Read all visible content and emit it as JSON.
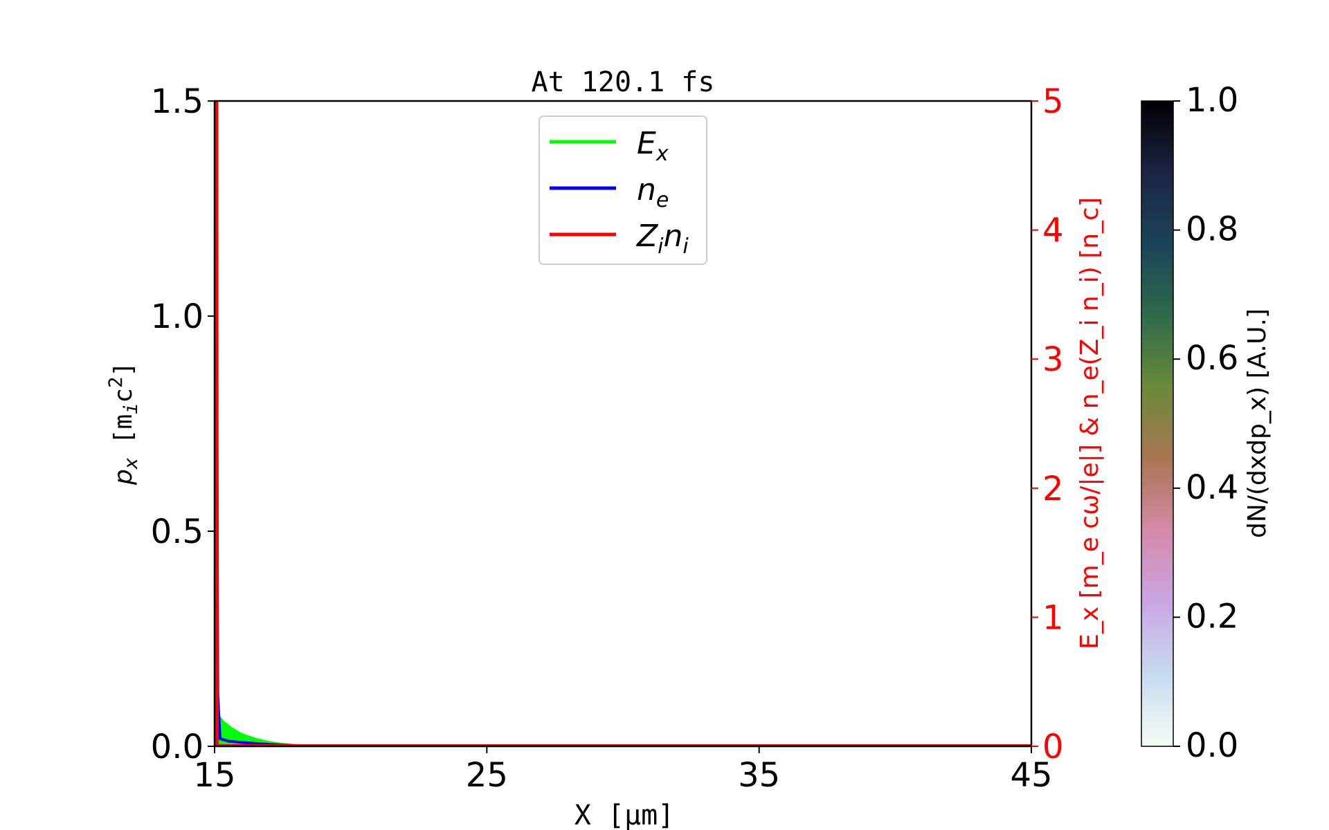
{
  "chart_data": {
    "type": "line",
    "title": "At 120.1 fs",
    "xlabel": "X [μm]",
    "ylabel_left": {
      "base": "p",
      "sub": "x",
      "unit_pre": "[m",
      "unit_sub": "i",
      "unit_mid": "c",
      "unit_sup": "2",
      "unit_post": "]"
    },
    "ylabel_right": "E_x [m_e cω/|e|] & n_e(Z_i n_i) [n_c]",
    "colorbar_label": "dN/(dxdp_x) [A.U.]",
    "xlim": [
      15,
      45
    ],
    "ylim_left": [
      0,
      1.5
    ],
    "ylim_right": [
      0,
      5
    ],
    "colorbar_lim": [
      0,
      1
    ],
    "xticks": [
      "15",
      "25",
      "35",
      "45"
    ],
    "yticks_left": [
      "0.0",
      "0.5",
      "1.0",
      "1.5"
    ],
    "yticks_right": [
      "0",
      "1",
      "2",
      "3",
      "4",
      "5"
    ],
    "colorbar_ticks": [
      "0.0",
      "0.2",
      "0.4",
      "0.6",
      "0.8",
      "1.0"
    ],
    "legend_position": "upper-center",
    "grid": false,
    "series": [
      {
        "name": "E_x",
        "color": "#00ff00",
        "axis": "right",
        "x": [
          15.08,
          15.12,
          15.3,
          15.6,
          16.0,
          16.5,
          17.0,
          17.5,
          18.0,
          19.0,
          45
        ],
        "y": [
          0.0,
          0.24,
          0.19,
          0.14,
          0.09,
          0.055,
          0.03,
          0.015,
          0.006,
          0.001,
          0.0
        ]
      },
      {
        "name": "n_e",
        "color": "#0000ff",
        "axis": "right",
        "x": [
          15.05,
          15.08,
          15.12,
          15.2,
          15.5,
          16.0,
          17.0,
          18.0,
          45
        ],
        "y": [
          5.0,
          3.0,
          0.4,
          0.06,
          0.04,
          0.03,
          0.015,
          0.005,
          0.0
        ]
      },
      {
        "name": "Z_i n_i",
        "color": "#ff0000",
        "axis": "right",
        "x": [
          15.03,
          15.04,
          15.06,
          15.08,
          45
        ],
        "y": [
          5.0,
          5.0,
          5.0,
          0.0,
          0.0
        ]
      }
    ],
    "legend": [
      {
        "base": "E",
        "sub": "x",
        "color": "#00ff00"
      },
      {
        "base": "n",
        "sub": "e",
        "color": "#0000ff"
      },
      {
        "base": "Z",
        "sub": "i",
        "base2": "n",
        "sub2": "i",
        "color": "#ff0000"
      }
    ],
    "right_axis_color": "#ff0000",
    "colormap": [
      "#f7fcf5",
      "#c6dbef",
      "#c9a6e3",
      "#d58aa9",
      "#a97652",
      "#6b8a3a",
      "#2f6b4a",
      "#1b4459",
      "#1d2444",
      "#000000"
    ]
  }
}
